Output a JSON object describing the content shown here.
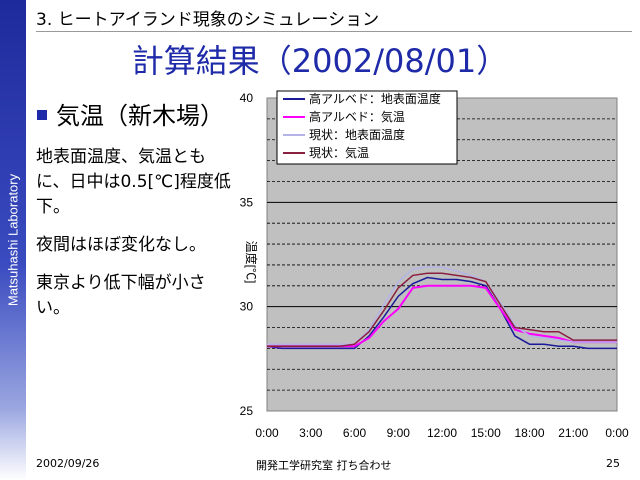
{
  "sidebar": {
    "text": "Matsuhashi Laboratory"
  },
  "header": {
    "label": "3. ヒートアイランド現象のシミュレーション"
  },
  "slide_title": "計算結果（2002/08/01）",
  "bullet": {
    "heading": "気温（新木場）"
  },
  "body": {
    "para1": "地表面温度、気温ともに、日中は0.5[℃]程度低下。",
    "para2": "夜間はほぼ変化なし。",
    "para3": "東京より低下幅が小さい。"
  },
  "footer": {
    "date": "2002/09/26",
    "center": "開発工学研究室 打ち合わせ",
    "page": "25"
  },
  "colors": {
    "brand_blue": "#1e2aa8",
    "plot_background": "#c0c0c0"
  },
  "chart_data": {
    "type": "line",
    "ylabel": "温度[℃]",
    "xlabel": "",
    "ylim": [
      25,
      40
    ],
    "x_ticks": [
      "0:00",
      "3:00",
      "6:00",
      "9:00",
      "12:00",
      "15:00",
      "18:00",
      "21:00",
      "0:00"
    ],
    "y_ticks": [
      "25",
      "30",
      "35",
      "40"
    ],
    "grid": true,
    "legend_position": "top-left",
    "x": [
      0,
      1,
      2,
      3,
      4,
      5,
      6,
      7,
      8,
      9,
      10,
      11,
      12,
      13,
      14,
      15,
      16,
      17,
      18,
      19,
      20,
      21,
      22,
      23,
      24
    ],
    "series": [
      {
        "name": "高アルベド：地表面温度",
        "color": "#1a1a9a",
        "values": [
          28.1,
          28.0,
          28.0,
          28.0,
          28.0,
          28.0,
          28.0,
          28.6,
          29.5,
          30.5,
          31.1,
          31.4,
          31.3,
          31.3,
          31.2,
          31.0,
          29.9,
          28.6,
          28.2,
          28.2,
          28.1,
          28.1,
          28.0,
          28.0,
          28.0
        ]
      },
      {
        "name": "高アルベド：気温",
        "color": "#ff00ff",
        "values": [
          28.1,
          28.1,
          28.1,
          28.1,
          28.1,
          28.1,
          28.1,
          28.5,
          29.3,
          29.9,
          30.9,
          31.0,
          31.0,
          31.0,
          31.0,
          30.9,
          29.9,
          28.9,
          28.7,
          28.6,
          28.5,
          28.3,
          28.3,
          28.3,
          28.3
        ]
      },
      {
        "name": "現状：地表面温度",
        "color": "#b4b4e8",
        "values": [
          28.2,
          28.2,
          28.2,
          28.2,
          28.2,
          28.2,
          28.2,
          28.9,
          30.1,
          31.2,
          31.8,
          31.9,
          31.9,
          31.7,
          31.5,
          31.2,
          30.2,
          29.1,
          28.6,
          28.5,
          28.4,
          28.3,
          28.3,
          28.3,
          28.3
        ]
      },
      {
        "name": "現状：気温",
        "color": "#8a2040",
        "values": [
          28.1,
          28.1,
          28.1,
          28.1,
          28.1,
          28.1,
          28.2,
          28.8,
          29.8,
          30.9,
          31.5,
          31.6,
          31.6,
          31.5,
          31.4,
          31.2,
          30.1,
          29.0,
          28.9,
          28.8,
          28.8,
          28.4,
          28.4,
          28.4,
          28.4
        ]
      }
    ]
  }
}
